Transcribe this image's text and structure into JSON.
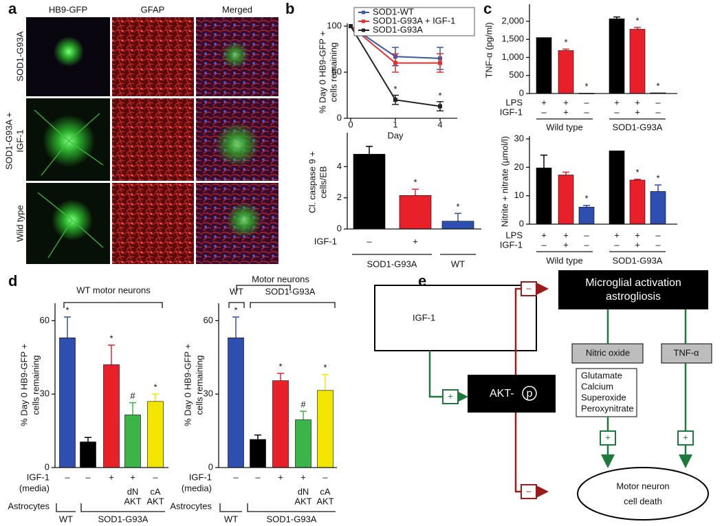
{
  "panels": [
    "a",
    "b",
    "c",
    "d",
    "e"
  ],
  "panel_a": {
    "columns": [
      "HB9-GFP",
      "GFAP",
      "Merged"
    ],
    "rows": [
      [
        "SOD1-G93A"
      ],
      [
        "SOD1-G93A +",
        "IGF-1"
      ],
      [
        "Wild type"
      ]
    ]
  },
  "chart_data": [
    {
      "type": "line",
      "categories": [
        "0",
        "1",
        "4"
      ],
      "xlabel": "Day",
      "ylabel": [
        "% Day 0 HB9-GFP +",
        "cells remaining"
      ],
      "ylim": [
        0,
        100
      ],
      "yticks": [
        0,
        50,
        100
      ],
      "legend": "top-right",
      "series": [
        {
          "name": "SOD1-WT",
          "color": "#3b58a8",
          "values": [
            100,
            67,
            65
          ],
          "errors": [
            null,
            10,
            12
          ],
          "annotations": [
            null,
            null,
            null
          ]
        },
        {
          "name": "SOD1-G93A + IGF-1",
          "color": "#e03030",
          "values": [
            100,
            60,
            60
          ],
          "errors": [
            null,
            10,
            10
          ],
          "annotations": [
            null,
            null,
            null
          ]
        },
        {
          "name": "SOD1-G93A",
          "color": "#222222",
          "values": [
            100,
            20,
            13
          ],
          "errors": [
            null,
            5,
            5
          ],
          "annotations": [
            null,
            "*",
            "*"
          ]
        }
      ]
    },
    {
      "type": "bar",
      "ylabel": [
        "Cl. caspase 9 +",
        "cells/EB"
      ],
      "ylim": [
        0,
        6
      ],
      "yticks": [
        0,
        2,
        4
      ],
      "values": [
        4.8,
        2.15,
        0.5
      ],
      "errors": [
        0.5,
        0.4,
        0.5
      ],
      "colors": [
        "#000000",
        "#e8202a",
        "#2f4fb0"
      ],
      "annotations": [
        null,
        "*",
        "*"
      ],
      "rows": [
        {
          "label": [
            "IGF-1"
          ],
          "entries": [
            "–",
            "+",
            null
          ]
        }
      ],
      "groups": [
        "SOD1-G93A",
        "WT"
      ]
    },
    {
      "type": "bar",
      "ylabel": [
        "TNF-α (pg/ml)"
      ],
      "ylim": [
        0,
        2400
      ],
      "yticks": [
        0,
        500,
        {
          "value": 1000,
          "label": "1,000"
        },
        {
          "value": 1500,
          "label": "1,500"
        },
        {
          "value": 2000,
          "label": "2,000"
        }
      ],
      "values": [
        1550,
        1190,
        10,
        2070,
        1780,
        20
      ],
      "errors": [
        null,
        40,
        null,
        50,
        50,
        null
      ],
      "colors": [
        "#000000",
        "#e8202a",
        "#2f4fb0",
        "#000000",
        "#e8202a",
        "#2f4fb0"
      ],
      "annotations": [
        null,
        "*",
        "*",
        null,
        "*",
        "*"
      ],
      "rows": [
        {
          "label": [
            "LPS"
          ],
          "entries": [
            "+",
            "+",
            "–",
            "+",
            "+",
            "–"
          ]
        },
        {
          "label": [
            "IGF-1"
          ],
          "entries": [
            "–",
            "+",
            "–",
            "–",
            "+",
            "–"
          ]
        }
      ],
      "groups": [
        "Wild type",
        "SOD1-G93A"
      ]
    },
    {
      "type": "bar",
      "ylabel": [
        "Nitrite + nitrate (µmol/l)"
      ],
      "ylim": [
        0,
        30
      ],
      "yticks": [
        0,
        10,
        20,
        30
      ],
      "values": [
        19.8,
        17.3,
        6,
        25.8,
        15.5,
        11.5
      ],
      "errors": [
        4.5,
        1,
        0.6,
        null,
        0.3,
        2.3
      ],
      "colors": [
        "#000000",
        "#e8202a",
        "#2f4fb0",
        "#000000",
        "#e8202a",
        "#2f4fb0"
      ],
      "annotations": [
        null,
        null,
        "*",
        null,
        "*",
        "*"
      ],
      "rows": [
        {
          "label": [
            "LPS"
          ],
          "entries": [
            "+",
            "+",
            "–",
            "+",
            "+",
            "–"
          ]
        },
        {
          "label": [
            "IGF-1"
          ],
          "entries": [
            "–",
            "+",
            "–",
            "–",
            "+",
            "–"
          ]
        }
      ],
      "groups": [
        "Wild type",
        "SOD1-G93A"
      ]
    },
    {
      "type": "bar",
      "headers": [
        "WT motor neurons"
      ],
      "ylabel": [
        "% Day 0 HB9-GFP +",
        "cells remaining"
      ],
      "ylim": [
        0,
        66
      ],
      "yticks": [
        0,
        30,
        60
      ],
      "values": [
        53,
        10.5,
        42,
        21.5,
        27
      ],
      "errors": [
        8.5,
        1.8,
        8,
        5,
        3
      ],
      "colors": [
        "#2f4fb0",
        "#000000",
        "#e8202a",
        "#3cb44a",
        "#f2e600"
      ],
      "annotations": [
        "*",
        null,
        "*",
        "#",
        "*"
      ],
      "rows": [
        {
          "label": [
            "IGF-1",
            "(media)"
          ],
          "entries": [
            "–",
            "–",
            "+",
            "+",
            "–"
          ]
        },
        {
          "label": [
            "Astrocytes"
          ],
          "entries": [
            null,
            null,
            null,
            [
              "dN",
              "AKT"
            ],
            [
              "cA",
              "AKT"
            ]
          ]
        }
      ],
      "groups": [
        "WT",
        "SOD1-G93A"
      ]
    },
    {
      "type": "bar",
      "headers": [
        "Motor neurons",
        "WT",
        "SOD1-G93A"
      ],
      "ylabel": [
        "% Day 0 HB9-GFP +",
        "cells remaining"
      ],
      "ylim": [
        0,
        66
      ],
      "yticks": [
        0,
        30,
        60
      ],
      "values": [
        53,
        11.5,
        35.5,
        19.5,
        31.5
      ],
      "errors": [
        8.5,
        1.8,
        3,
        3.5,
        6.5
      ],
      "colors": [
        "#2f4fb0",
        "#000000",
        "#e8202a",
        "#3cb44a",
        "#f2e600"
      ],
      "annotations": [
        "*",
        null,
        "*",
        "#",
        "*"
      ],
      "rows": [
        {
          "label": [
            "IGF-1",
            "(media)"
          ],
          "entries": [
            "–",
            "–",
            "+",
            "+",
            "–"
          ]
        },
        {
          "label": [
            "Astrocytes"
          ],
          "entries": [
            null,
            null,
            null,
            [
              "dN",
              "AKT"
            ],
            [
              "cA",
              "AKT"
            ]
          ]
        }
      ],
      "groups": [
        "WT",
        "SOD1-G93A"
      ]
    }
  ],
  "diagram": {
    "igf1": "IGF-1",
    "akt": "AKT-",
    "akt_p": "p",
    "microglia": [
      "Microglial activation",
      "astrogliosis"
    ],
    "nitric_oxide": "Nitric oxide",
    "tnf": "TNF-α",
    "mediators": [
      "Glutamate",
      "Calcium",
      "Superoxide",
      "Peroxynitrate"
    ],
    "death": [
      "Motor neuron",
      "cell death"
    ],
    "signs": [
      "+",
      "–",
      "+",
      "+",
      "–"
    ]
  }
}
